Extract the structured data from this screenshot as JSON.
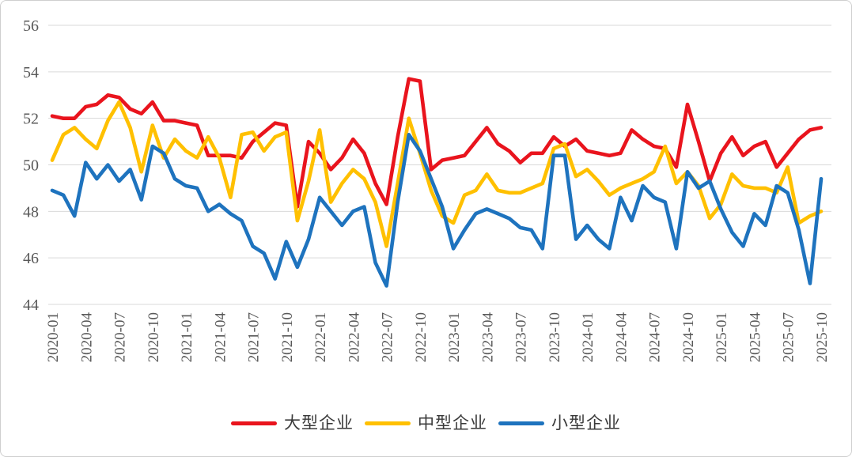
{
  "page": {
    "background": "#ffffff",
    "border_color": "#cfcfcf"
  },
  "y_axis": {
    "ticks": [
      "56",
      "54",
      "52",
      "50",
      "48",
      "46",
      "44"
    ]
  },
  "x_axis": {
    "tick_labels": [
      "2020-01",
      "2020-04",
      "2020-07",
      "2020-10",
      "2021-01",
      "2021-04",
      "2021-07",
      "2021-10",
      "2022-01",
      "2022-04",
      "2022-07",
      "2022-10",
      "2023-01",
      "2023-04",
      "2023-07",
      "2023-10",
      "2024-01",
      "2024-04",
      "2024-07",
      "2024-10",
      "2025-01",
      "2025-04",
      "2025-07",
      "2025-10"
    ]
  },
  "legend": {
    "items": [
      {
        "label": "大型企业",
        "color": "#E9141D"
      },
      {
        "label": "中型企业",
        "color": "#FFC000"
      },
      {
        "label": "小型企业",
        "color": "#1E73BE"
      }
    ]
  },
  "chart_data": {
    "type": "line",
    "title": "",
    "xlabel": "",
    "ylabel": "",
    "ylim": [
      44,
      56
    ],
    "y_tick_step": 2,
    "x_tick_step": 3,
    "grid": "horizontal",
    "legend_position": "bottom",
    "x": [
      "2020-01",
      "2020-02",
      "2020-03",
      "2020-04",
      "2020-05",
      "2020-06",
      "2020-07",
      "2020-08",
      "2020-09",
      "2020-10",
      "2020-11",
      "2020-12",
      "2021-01",
      "2021-02",
      "2021-03",
      "2021-04",
      "2021-05",
      "2021-06",
      "2021-07",
      "2021-08",
      "2021-09",
      "2021-10",
      "2021-11",
      "2021-12",
      "2022-01",
      "2022-02",
      "2022-03",
      "2022-04",
      "2022-05",
      "2022-06",
      "2022-07",
      "2022-08",
      "2022-09",
      "2022-10",
      "2022-11",
      "2022-12",
      "2023-01",
      "2023-02",
      "2023-03",
      "2023-04",
      "2023-05",
      "2023-06",
      "2023-07",
      "2023-08",
      "2023-09",
      "2023-10",
      "2023-11",
      "2023-12",
      "2024-01",
      "2024-02",
      "2024-03",
      "2024-04",
      "2024-05",
      "2024-06",
      "2024-07",
      "2024-08",
      "2024-09",
      "2024-10",
      "2024-11",
      "2024-12",
      "2025-01",
      "2025-02",
      "2025-03",
      "2025-04",
      "2025-05",
      "2025-06",
      "2025-07",
      "2025-08",
      "2025-09",
      "2025-10"
    ],
    "series": [
      {
        "name": "大型企业",
        "color": "#E9141D",
        "values": [
          52.1,
          52.0,
          52.0,
          52.5,
          52.6,
          53.0,
          52.9,
          52.4,
          52.2,
          52.7,
          51.9,
          51.9,
          51.8,
          51.7,
          50.4,
          50.4,
          50.4,
          50.3,
          51.0,
          51.4,
          51.8,
          51.7,
          48.2,
          51.0,
          50.5,
          49.8,
          50.3,
          51.1,
          50.5,
          49.2,
          48.3,
          51.2,
          53.7,
          53.6,
          49.8,
          50.2,
          50.3,
          50.4,
          51.0,
          51.6,
          50.9,
          50.6,
          50.1,
          50.5,
          50.5,
          51.2,
          50.8,
          51.1,
          50.6,
          50.5,
          50.4,
          50.5,
          51.5,
          51.1,
          50.8,
          50.7,
          49.9,
          52.6,
          51.0,
          49.3,
          50.5,
          51.2,
          50.4,
          50.8,
          51.0,
          49.9,
          50.5,
          51.1,
          51.5,
          51.6
        ]
      },
      {
        "name": "中型企业",
        "color": "#FFC000",
        "values": [
          50.2,
          51.3,
          51.6,
          51.1,
          50.7,
          51.9,
          52.7,
          51.6,
          49.7,
          51.7,
          50.3,
          51.1,
          50.6,
          50.3,
          51.2,
          50.3,
          48.6,
          51.3,
          51.4,
          50.6,
          51.2,
          51.4,
          47.6,
          49.3,
          51.5,
          48.4,
          49.2,
          49.8,
          49.4,
          48.4,
          46.5,
          49.2,
          52.0,
          50.5,
          48.9,
          47.8,
          47.5,
          48.7,
          48.9,
          49.6,
          48.9,
          48.8,
          48.8,
          49.0,
          49.2,
          50.7,
          50.9,
          49.5,
          49.8,
          49.3,
          48.7,
          49.0,
          49.2,
          49.4,
          49.7,
          50.8,
          49.2,
          49.7,
          49.1,
          47.7,
          48.3,
          49.6,
          49.1,
          49.0,
          49.0,
          48.8,
          49.9,
          47.5,
          47.8,
          48.0
        ]
      },
      {
        "name": "小型企业",
        "color": "#1E73BE",
        "values": [
          48.9,
          48.7,
          47.8,
          50.1,
          49.4,
          50.0,
          49.3,
          49.8,
          48.5,
          50.8,
          50.5,
          49.4,
          49.1,
          49.0,
          48.0,
          48.3,
          47.9,
          47.6,
          46.5,
          46.2,
          45.1,
          46.7,
          45.6,
          46.8,
          48.6,
          48.0,
          47.4,
          48.0,
          48.2,
          45.8,
          44.8,
          48.4,
          51.3,
          50.6,
          49.4,
          48.2,
          46.4,
          47.2,
          47.9,
          48.1,
          47.9,
          47.7,
          47.3,
          47.2,
          46.4,
          50.4,
          50.4,
          46.8,
          47.4,
          46.8,
          46.4,
          48.6,
          47.6,
          49.1,
          48.6,
          48.4,
          46.4,
          49.7,
          49.0,
          49.3,
          48.1,
          47.1,
          46.5,
          47.9,
          47.4,
          49.1,
          48.8,
          47.2,
          44.9,
          49.4
        ]
      }
    ]
  }
}
